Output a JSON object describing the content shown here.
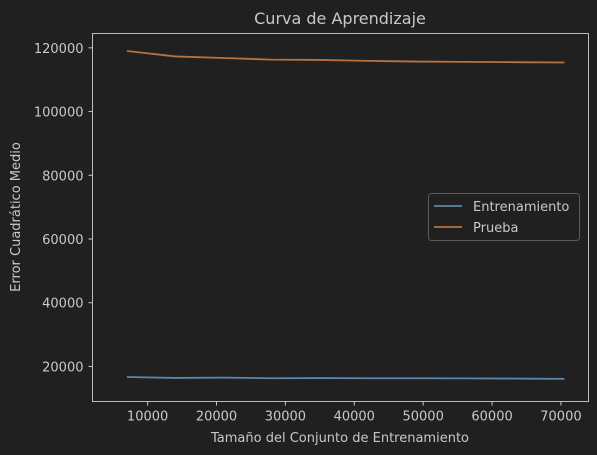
{
  "colors": {
    "background": "#202020",
    "text": "#c8c8c8",
    "frame": "#bdbdbd",
    "train": "#5b86a8",
    "test": "#b5733f"
  },
  "chart_data": {
    "type": "line",
    "title": "Curva de Aprendizaje",
    "xlabel": "Tamaño del Conjunto de Entrenamiento",
    "ylabel": "Error Cuadrático Medio",
    "xlim": [
      2000,
      74000
    ],
    "ylim": [
      9000,
      124500
    ],
    "xticks": [
      10000,
      20000,
      30000,
      40000,
      50000,
      60000,
      70000
    ],
    "yticks": [
      20000,
      40000,
      60000,
      80000,
      100000,
      120000
    ],
    "grid": false,
    "legend_position": "center-right",
    "x": [
      7000,
      14000,
      21000,
      28000,
      35000,
      42000,
      49000,
      56000,
      63000,
      70500
    ],
    "series": [
      {
        "name": "Entrenamiento",
        "color": "#5b86a8",
        "values": [
          16700,
          16400,
          16500,
          16300,
          16350,
          16300,
          16300,
          16250,
          16200,
          16100
        ]
      },
      {
        "name": "Prueba",
        "color": "#b5733f",
        "values": [
          119000,
          117300,
          116800,
          116300,
          116200,
          115900,
          115700,
          115600,
          115500,
          115400
        ]
      }
    ]
  }
}
